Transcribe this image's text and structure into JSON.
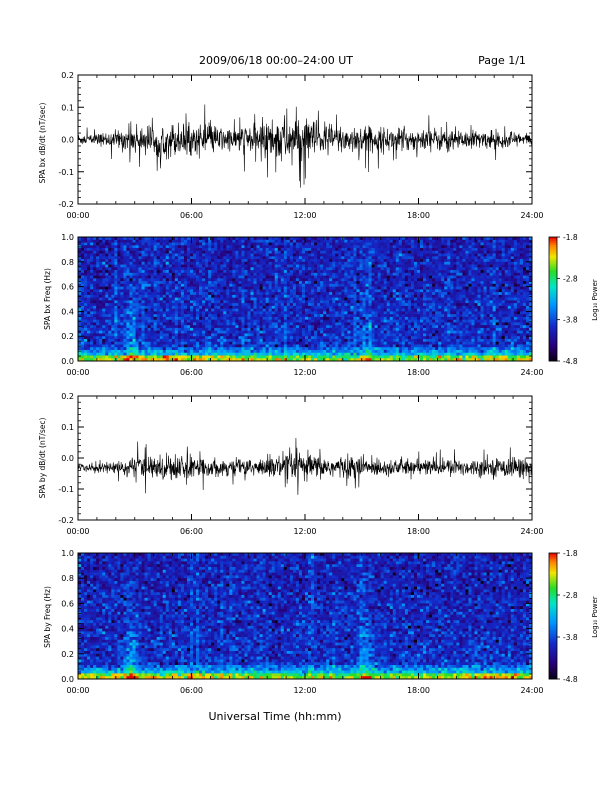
{
  "header": {
    "title": "2009/06/18  00:00–24:00 UT",
    "page": "Page 1/1"
  },
  "footer": {
    "xlabel": "Universal Time (hh:mm)"
  },
  "chart_data": [
    {
      "type": "line",
      "id": "bx-dbdt",
      "ylabel": "SPA bx dB/dt (nT/sec)",
      "xlabel": "",
      "x_tick_labels": [
        "00:00",
        "06:00",
        "12:00",
        "18:00",
        "24:00"
      ],
      "xlim_hours": [
        0,
        24
      ],
      "ylim": [
        -0.2,
        0.2
      ],
      "y_tick_labels": [
        "0.2",
        "0.1",
        "0.0",
        "-0.1",
        "-0.2"
      ],
      "baseline": 0.0,
      "envelope_hours": [
        0,
        1,
        2,
        3,
        4,
        5,
        6,
        7,
        8,
        9,
        10,
        11,
        12,
        13,
        14,
        15,
        16,
        17,
        18,
        19,
        20,
        21,
        22,
        23,
        24
      ],
      "envelope_amplitude": [
        0.02,
        0.02,
        0.03,
        0.05,
        0.05,
        0.06,
        0.05,
        0.05,
        0.04,
        0.05,
        0.07,
        0.09,
        0.08,
        0.06,
        0.05,
        0.05,
        0.04,
        0.04,
        0.04,
        0.04,
        0.04,
        0.03,
        0.03,
        0.03,
        0.02
      ]
    },
    {
      "type": "heatmap",
      "id": "bx-spectrogram",
      "ylabel": "SPA bx Freq (Hz)",
      "x_tick_labels": [
        "00:00",
        "06:00",
        "12:00",
        "18:00",
        "24:00"
      ],
      "xlim_hours": [
        0,
        24
      ],
      "ylim": [
        0.0,
        1.0
      ],
      "y_tick_labels": [
        "1.0",
        "0.8",
        "0.6",
        "0.4",
        "0.2",
        "0.0"
      ],
      "colorbar": {
        "label": "Log₁₀ Power",
        "range": [
          -4.8,
          -1.8
        ],
        "tick_labels": [
          "-1.8",
          "-2.8",
          "-3.8",
          "-4.8"
        ]
      },
      "enhancement_hours": [
        2.8,
        15.2
      ]
    },
    {
      "type": "line",
      "id": "by-dbdt",
      "ylabel": "SPA by dB/dt (nT/sec)",
      "x_tick_labels": [
        "00:00",
        "06:00",
        "12:00",
        "18:00",
        "24:00"
      ],
      "xlim_hours": [
        0,
        24
      ],
      "ylim": [
        -0.2,
        0.2
      ],
      "y_tick_labels": [
        "0.2",
        "0.1",
        "0.0",
        "-0.1",
        "-0.2"
      ],
      "baseline": -0.03,
      "envelope_hours": [
        0,
        1,
        2,
        3,
        4,
        5,
        6,
        7,
        8,
        9,
        10,
        11,
        12,
        13,
        14,
        15,
        16,
        17,
        18,
        19,
        20,
        21,
        22,
        23,
        24
      ],
      "envelope_amplitude": [
        0.01,
        0.02,
        0.02,
        0.04,
        0.04,
        0.05,
        0.04,
        0.03,
        0.03,
        0.03,
        0.04,
        0.05,
        0.05,
        0.04,
        0.04,
        0.04,
        0.03,
        0.03,
        0.03,
        0.03,
        0.03,
        0.03,
        0.03,
        0.04,
        0.03
      ]
    },
    {
      "type": "heatmap",
      "id": "by-spectrogram",
      "ylabel": "SPA by Freq (Hz)",
      "x_tick_labels": [
        "00:00",
        "06:00",
        "12:00",
        "18:00",
        "24:00"
      ],
      "xlim_hours": [
        0,
        24
      ],
      "ylim": [
        0.0,
        1.0
      ],
      "y_tick_labels": [
        "1.0",
        "0.8",
        "0.6",
        "0.4",
        "0.2",
        "0.0"
      ],
      "colorbar": {
        "label": "Log₁₀ Power",
        "range": [
          -4.8,
          -1.8
        ],
        "tick_labels": [
          "-1.8",
          "-2.8",
          "-3.8",
          "-4.8"
        ]
      },
      "enhancement_hours": [
        2.8,
        15.2
      ]
    }
  ]
}
